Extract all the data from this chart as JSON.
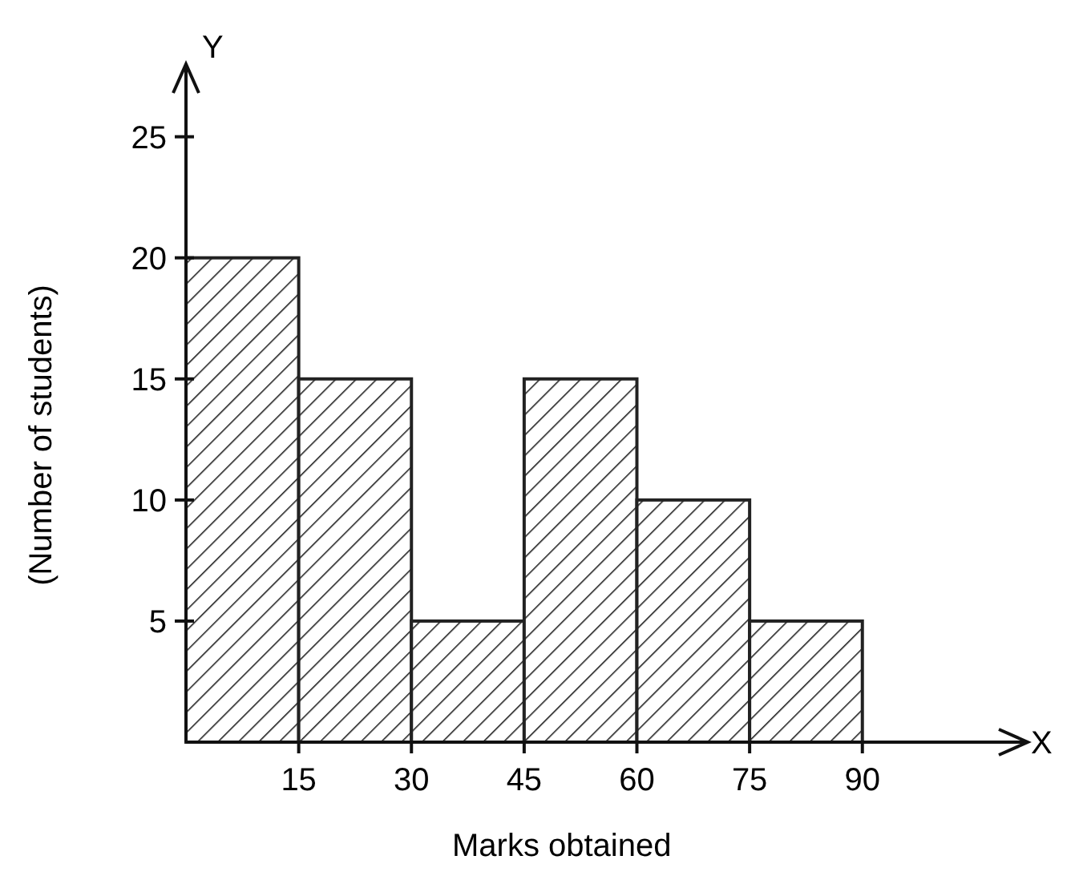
{
  "chart_data": {
    "type": "histogram",
    "xlabel": "Marks obtained",
    "ylabel": "(Number of students)",
    "bins": [
      0,
      15,
      30,
      45,
      60,
      75,
      90
    ],
    "values": [
      20,
      15,
      5,
      15,
      10,
      5
    ],
    "color": "#222222",
    "xlim": [
      0,
      112
    ],
    "ylim": [
      0,
      28
    ],
    "xticks": [
      15,
      30,
      45,
      60,
      75,
      90
    ],
    "yticks": [
      5,
      10,
      15,
      20,
      25
    ],
    "annotations": [
      "Y",
      "X"
    ]
  }
}
